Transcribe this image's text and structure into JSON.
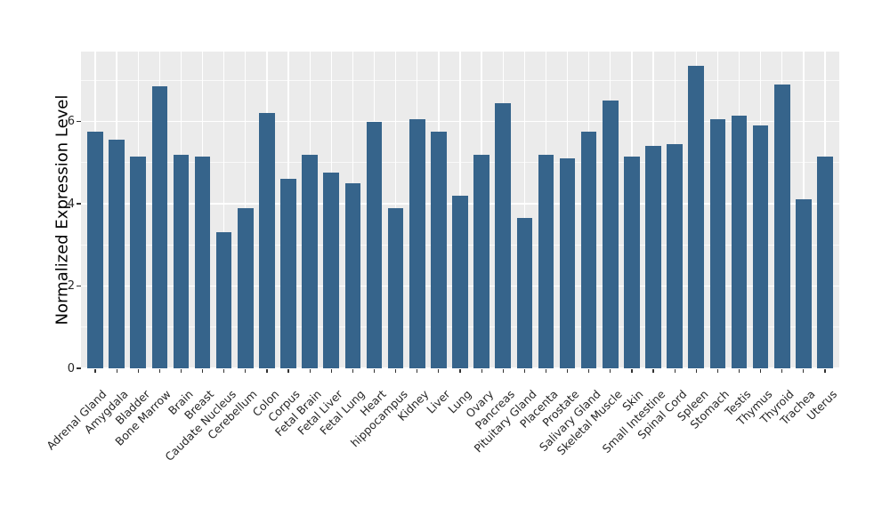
{
  "chart_data": {
    "type": "bar",
    "title": "",
    "xlabel": "",
    "ylabel": "Normalized Expression Level",
    "ylim": [
      0,
      7.7
    ],
    "yticks": [
      0,
      2,
      4,
      6
    ],
    "minor_yticks": [
      1,
      3,
      5,
      7
    ],
    "grid": "on",
    "legend": "none",
    "categories": [
      "Adrenal Gland",
      "Amygdala",
      "Bladder",
      "Bone Marrow",
      "Brain",
      "Breast",
      "Caudate Nucleus",
      "Cerebellum",
      "Colon",
      "Corpus",
      "Fetal Brain",
      "Fetal Liver",
      "Fetal Lung",
      "Heart",
      "hippocampus",
      "Kidney",
      "Liver",
      "Lung",
      "Ovary",
      "Pancreas",
      "Pituitary Gland",
      "Placenta",
      "Prostate",
      "Salivary Gland",
      "Skeletal Muscle",
      "Skin",
      "Small Intestine",
      "Spinal Cord",
      "Spleen",
      "Stomach",
      "Testis",
      "Thymus",
      "Thyroid",
      "Trachea",
      "Uterus"
    ],
    "values": [
      5.75,
      5.55,
      5.15,
      6.85,
      5.2,
      5.15,
      3.3,
      3.9,
      6.2,
      4.6,
      5.2,
      4.75,
      4.5,
      6.0,
      3.9,
      6.05,
      5.75,
      4.2,
      5.2,
      6.45,
      3.65,
      5.2,
      5.1,
      5.75,
      6.5,
      5.15,
      5.4,
      5.45,
      7.35,
      6.05,
      6.15,
      5.9,
      6.9,
      4.1,
      5.15
    ],
    "colors": {
      "bar": "#36648B",
      "panel_background": "#EBEBEB",
      "gridline": "#FFFFFF",
      "tick": "#333333",
      "tick_text": "#262626",
      "axis_title_text": "#000000",
      "figure_background": "#FFFFFF"
    }
  }
}
